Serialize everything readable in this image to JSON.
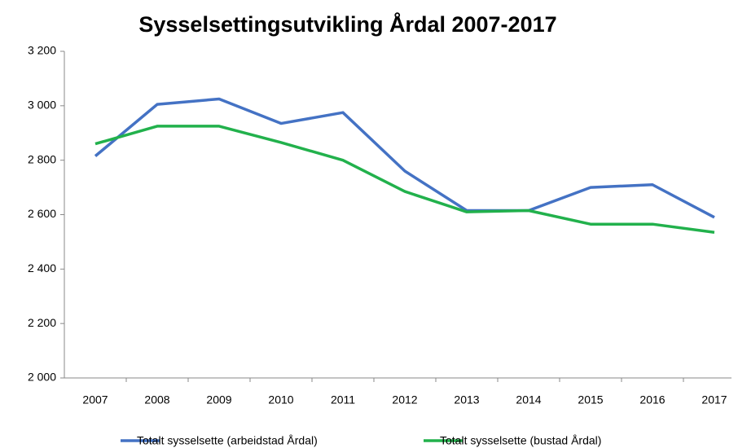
{
  "chart_data": {
    "type": "line",
    "title": "Sysselsettingsutvikling Årdal 2007-2017",
    "categories": [
      "2007",
      "2008",
      "2009",
      "2010",
      "2011",
      "2012",
      "2013",
      "2014",
      "2015",
      "2016",
      "2017"
    ],
    "series": [
      {
        "name": "Totalt sysselsette (arbeidstad Årdal)",
        "color": "#4472c4",
        "values": [
          2815,
          3005,
          3025,
          2935,
          2975,
          2760,
          2615,
          2615,
          2700,
          2710,
          2590
        ]
      },
      {
        "name": "Totalt sysselsette (bustad Årdal)",
        "color": "#22b14c",
        "values": [
          2860,
          2925,
          2925,
          2865,
          2800,
          2685,
          2610,
          2615,
          2565,
          2565,
          2535
        ]
      }
    ],
    "ylim": [
      2000,
      3200
    ],
    "yticks": [
      {
        "value": 2000,
        "label": "2 000"
      },
      {
        "value": 2200,
        "label": "2 200"
      },
      {
        "value": 2400,
        "label": "2 400"
      },
      {
        "value": 2600,
        "label": "2 600"
      },
      {
        "value": 2800,
        "label": "2 800"
      },
      {
        "value": 3000,
        "label": "3 000"
      },
      {
        "value": 3200,
        "label": "3 200"
      }
    ],
    "grid": false,
    "legend": "bottom"
  }
}
